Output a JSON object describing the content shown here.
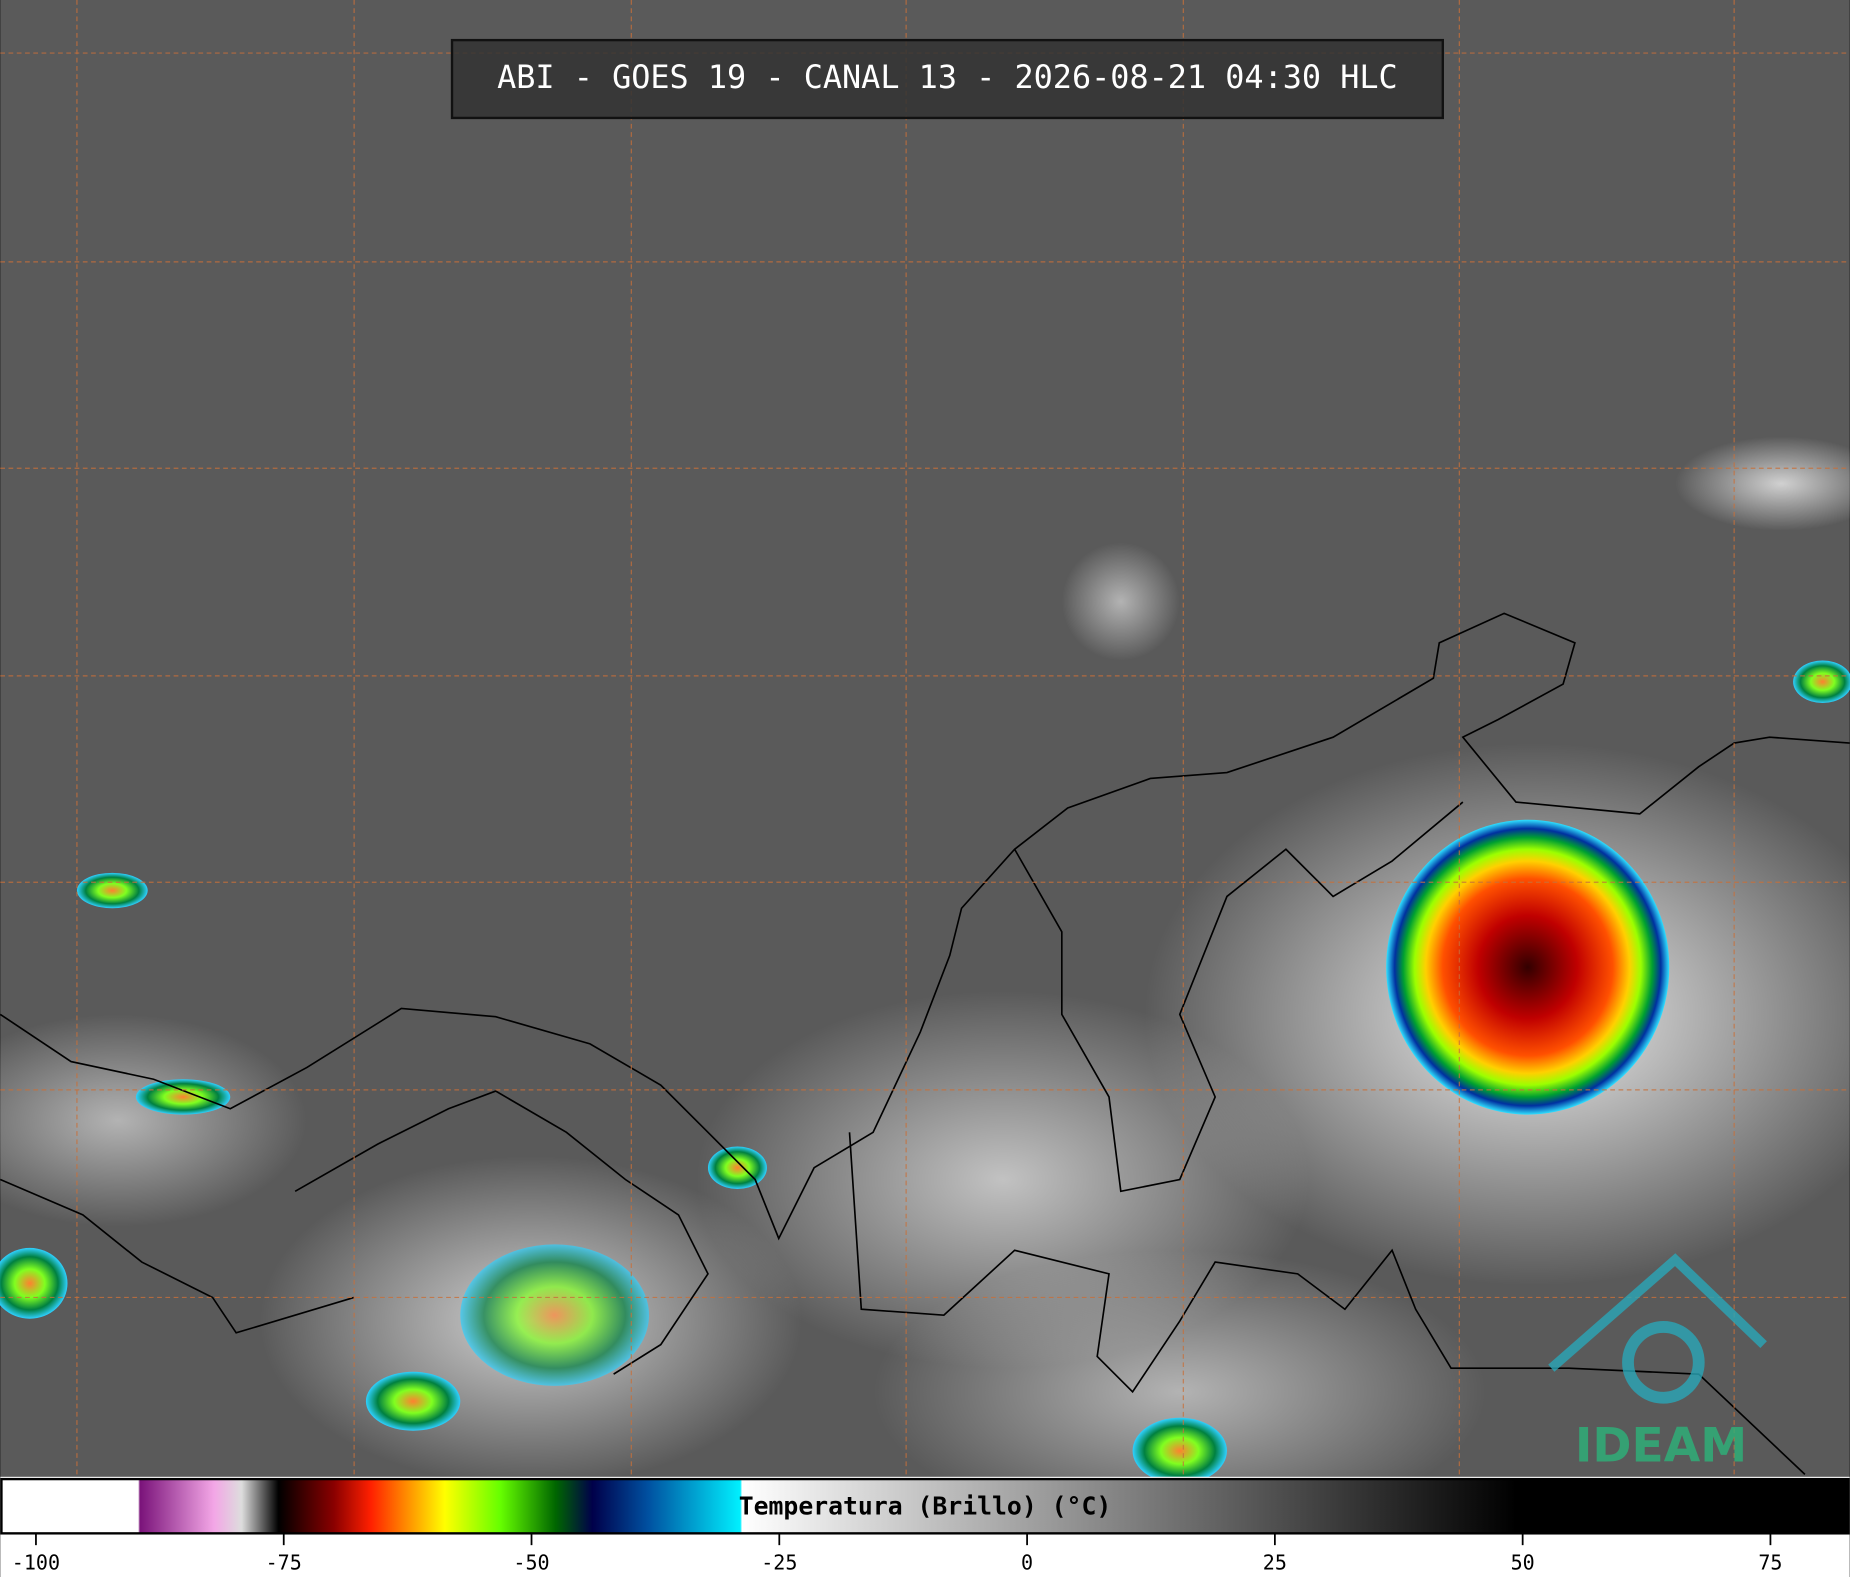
{
  "title": "ABI - GOES 19 - CANAL 13 - 2026-08-21 04:30 HLC",
  "logo": "IDEAM",
  "colorbar": {
    "label": "Temperatura (Brillo) (°C)",
    "xlim": [
      -103.6,
      83
    ],
    "xticks": [
      -100,
      -75,
      -50,
      -25,
      0,
      25,
      50,
      75
    ]
  }
}
